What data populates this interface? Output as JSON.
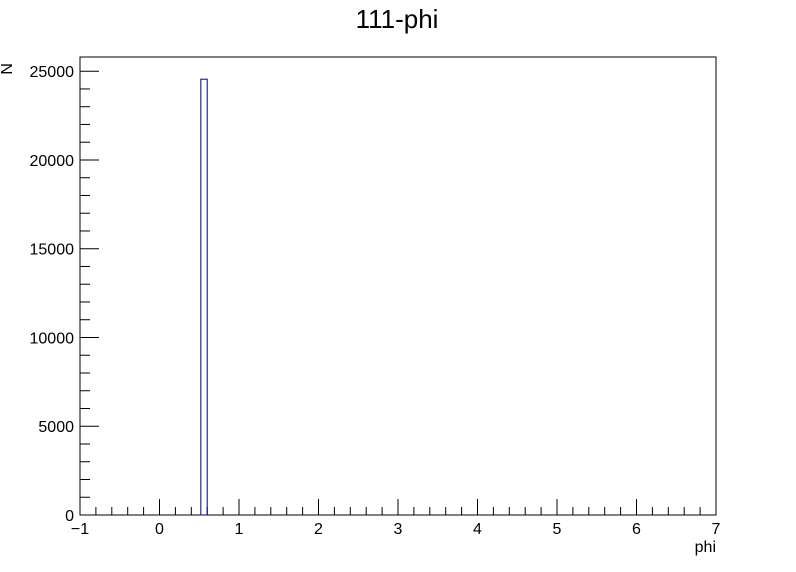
{
  "chart_data": {
    "type": "bar",
    "title": "111-phi",
    "xlabel": "phi",
    "ylabel": "N",
    "xlim": [
      -1,
      7
    ],
    "ylim": [
      0,
      25800
    ],
    "x_ticks": [
      "−1",
      "0",
      "1",
      "2",
      "3",
      "4",
      "5",
      "6",
      "7"
    ],
    "x_tick_values": [
      -1,
      0,
      1,
      2,
      3,
      4,
      5,
      6,
      7
    ],
    "y_ticks": [
      "0",
      "5000",
      "10000",
      "15000",
      "20000",
      "25000"
    ],
    "y_tick_values": [
      0,
      5000,
      10000,
      15000,
      20000,
      25000
    ],
    "bins": [
      {
        "x_low": 0.52,
        "x_high": 0.6,
        "value": 24550
      }
    ],
    "grid": false,
    "colors": {
      "bar_stroke": "#000080",
      "frame": "#000000"
    }
  }
}
